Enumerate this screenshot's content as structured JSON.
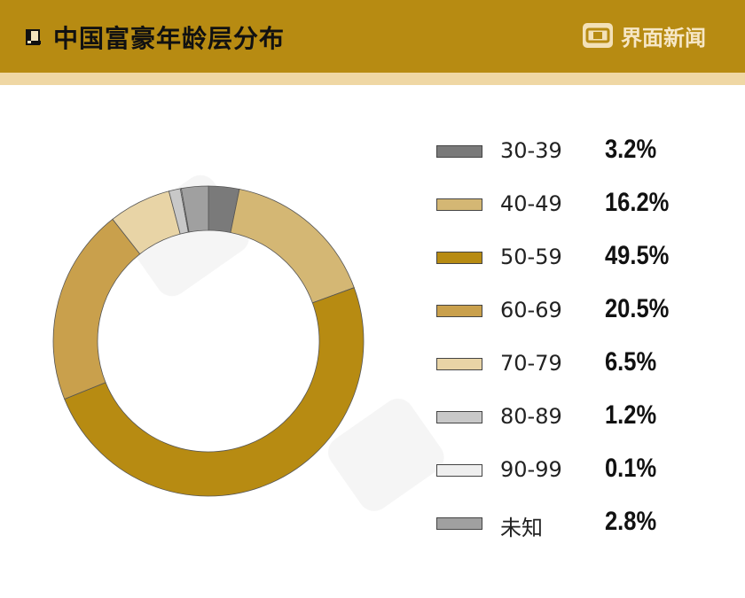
{
  "header": {
    "title": "中国富豪年龄层分布",
    "brand": "界面新闻"
  },
  "colors": {
    "header_bg": "#b78b12",
    "header_strip": "#efd7a4"
  },
  "chart_data": {
    "type": "pie",
    "variant": "donut",
    "title": "中国富豪年龄层分布",
    "categories": [
      "30-39",
      "40-49",
      "50-59",
      "60-69",
      "70-79",
      "80-89",
      "90-99",
      "未知"
    ],
    "values": [
      3.2,
      16.2,
      49.5,
      20.5,
      6.5,
      1.2,
      0.1,
      2.8
    ],
    "value_labels": [
      "3.2%",
      "16.2%",
      "49.5%",
      "20.5%",
      "6.5%",
      "1.2%",
      "0.1%",
      "2.8%"
    ],
    "colors": [
      "#7a7a7a",
      "#d4b774",
      "#b78b12",
      "#c9a04c",
      "#e8d4a6",
      "#c8c8c8",
      "#efefef",
      "#a0a0a0"
    ],
    "legend_position": "right",
    "unit": "%"
  }
}
